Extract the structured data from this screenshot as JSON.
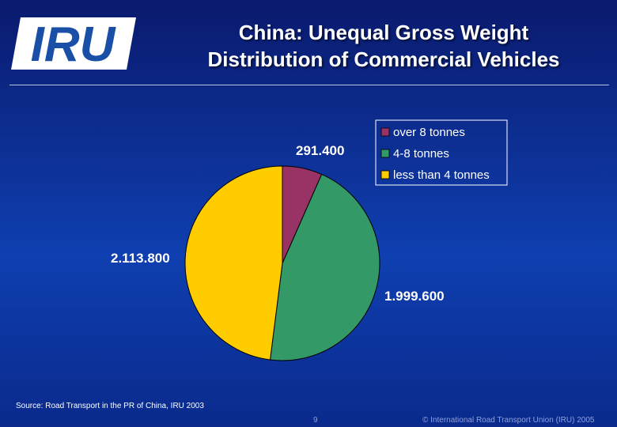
{
  "header": {
    "logo_text": "IRU",
    "title_line1": "China: Unequal Gross Weight",
    "title_line2": "Distribution of Commercial Vehicles"
  },
  "chart_data": {
    "type": "pie",
    "title": "",
    "slices": [
      {
        "label": "over 8 tonnes",
        "value": 291400,
        "value_label": "291.400",
        "color": "#993366"
      },
      {
        "label": "4-8 tonnes",
        "value": 1999600,
        "value_label": "1.999.600",
        "color": "#339966"
      },
      {
        "label": "less than 4 tonnes",
        "value": 2113800,
        "value_label": "2.113.800",
        "color": "#ffcc00"
      }
    ],
    "legend_position": "top-right"
  },
  "footer": {
    "source": "Source: Road Transport in the PR of China, IRU 2003",
    "page_number": "9",
    "copyright": "© International Road Transport Union (IRU) 2005"
  }
}
